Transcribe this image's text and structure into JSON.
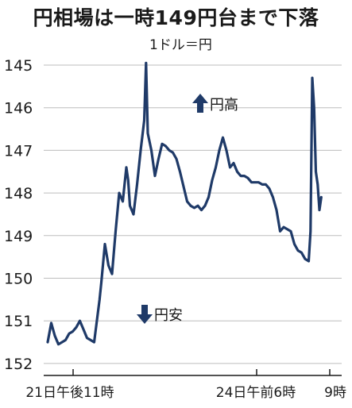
{
  "chart_data": {
    "type": "line",
    "title": "円相場は一時149円台まで下落",
    "unit_label": "1ドル＝円",
    "y_axis": {
      "inverted": true,
      "ylim": [
        145,
        152
      ],
      "ticks": [
        145,
        146,
        147,
        148,
        149,
        150,
        151,
        152
      ]
    },
    "x_tick_labels": [
      "21日午後11時",
      "24日午前6時",
      "9時"
    ],
    "annotations": {
      "up": "円高",
      "down": "円安"
    },
    "line_color": "#1f3a68",
    "series": [
      {
        "values": [
          [
            0.0,
            151.5
          ],
          [
            1.0,
            151.05
          ],
          [
            2.0,
            151.35
          ],
          [
            3.0,
            151.55
          ],
          [
            4.0,
            151.5
          ],
          [
            5.0,
            151.45
          ],
          [
            6.0,
            151.3
          ],
          [
            7.0,
            151.25
          ],
          [
            8.0,
            151.15
          ],
          [
            9.0,
            151.0
          ],
          [
            10.0,
            151.2
          ],
          [
            11.0,
            151.4
          ],
          [
            12.0,
            151.45
          ],
          [
            13.0,
            151.5
          ],
          [
            14.5,
            150.5
          ],
          [
            15.0,
            150.1
          ],
          [
            16.0,
            149.2
          ],
          [
            17.0,
            149.7
          ],
          [
            18.0,
            149.9
          ],
          [
            19.0,
            148.9
          ],
          [
            20.0,
            148.0
          ],
          [
            21.0,
            148.2
          ],
          [
            22.0,
            147.4
          ],
          [
            22.5,
            147.7
          ],
          [
            23.0,
            148.3
          ],
          [
            24.0,
            148.5
          ],
          [
            25.0,
            147.8
          ],
          [
            26.0,
            147.0
          ],
          [
            27.0,
            146.3
          ],
          [
            27.5,
            144.95
          ],
          [
            28.0,
            146.6
          ],
          [
            29.0,
            147.0
          ],
          [
            30.0,
            147.6
          ],
          [
            31.0,
            147.2
          ],
          [
            32.0,
            146.85
          ],
          [
            33.0,
            146.9
          ],
          [
            34.0,
            147.0
          ],
          [
            35.0,
            147.05
          ],
          [
            36.0,
            147.2
          ],
          [
            37.0,
            147.5
          ],
          [
            38.0,
            147.85
          ],
          [
            39.0,
            148.2
          ],
          [
            40.0,
            148.3
          ],
          [
            41.0,
            148.35
          ],
          [
            42.0,
            148.3
          ],
          [
            43.0,
            148.4
          ],
          [
            44.0,
            148.3
          ],
          [
            45.0,
            148.1
          ],
          [
            46.0,
            147.7
          ],
          [
            47.0,
            147.4
          ],
          [
            48.0,
            147.0
          ],
          [
            49.0,
            146.7
          ],
          [
            50.0,
            147.0
          ],
          [
            51.0,
            147.4
          ],
          [
            52.0,
            147.3
          ],
          [
            53.0,
            147.5
          ],
          [
            54.0,
            147.6
          ],
          [
            55.0,
            147.6
          ],
          [
            56.0,
            147.65
          ],
          [
            57.0,
            147.75
          ],
          [
            58.0,
            147.75
          ],
          [
            59.0,
            147.75
          ],
          [
            60.0,
            147.8
          ],
          [
            61.0,
            147.8
          ],
          [
            62.0,
            147.9
          ],
          [
            63.0,
            148.1
          ],
          [
            64.0,
            148.4
          ],
          [
            65.0,
            148.9
          ],
          [
            66.0,
            148.8
          ],
          [
            67.0,
            148.85
          ],
          [
            68.0,
            148.9
          ],
          [
            69.0,
            149.2
          ],
          [
            70.0,
            149.35
          ],
          [
            71.0,
            149.4
          ],
          [
            72.0,
            149.55
          ],
          [
            73.0,
            149.6
          ],
          [
            73.5,
            148.9
          ],
          [
            74.0,
            145.3
          ],
          [
            74.5,
            146.0
          ],
          [
            75.0,
            147.5
          ],
          [
            75.5,
            147.8
          ],
          [
            76.0,
            148.4
          ],
          [
            76.5,
            148.1
          ]
        ]
      }
    ]
  }
}
